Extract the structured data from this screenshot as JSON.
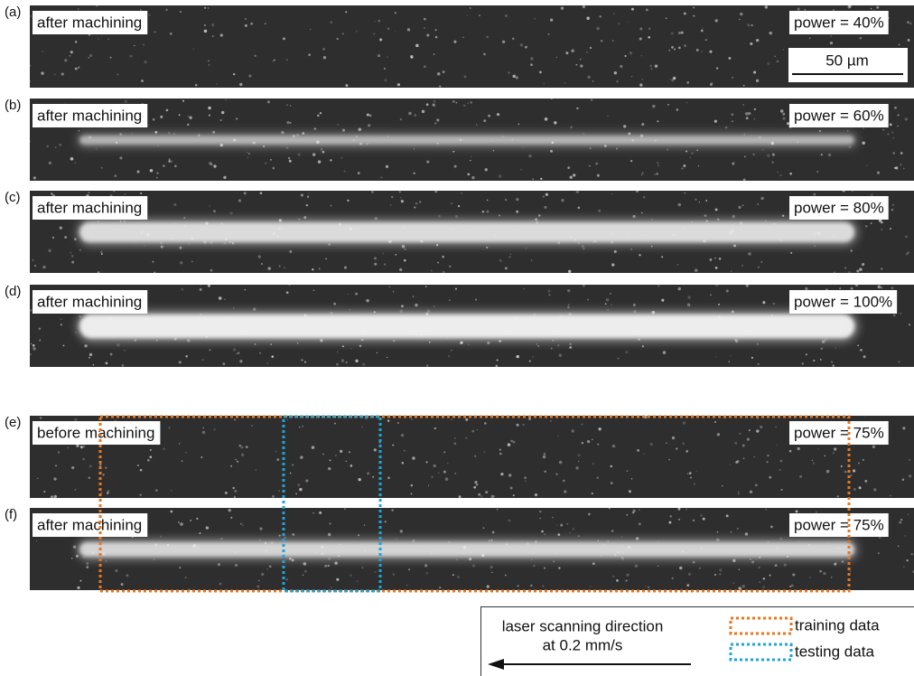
{
  "panels": [
    {
      "letter": "(a)",
      "label": "after machining",
      "power": "power = 40%"
    },
    {
      "letter": "(b)",
      "label": "after machining",
      "power": "power = 60%"
    },
    {
      "letter": "(c)",
      "label": "after machining",
      "power": "power = 80%"
    },
    {
      "letter": "(d)",
      "label": "after machining",
      "power": "power = 100%"
    },
    {
      "letter": "(e)",
      "label": "before machining",
      "power": "power = 75%"
    },
    {
      "letter": "(f)",
      "label": "after machining",
      "power": "power = 75%"
    }
  ],
  "scale_bar": "50 µm",
  "legend": {
    "direction_line1": "laser scanning direction",
    "direction_line2": "at 0.2 mm/s",
    "training": "training data",
    "testing": "testing data"
  }
}
